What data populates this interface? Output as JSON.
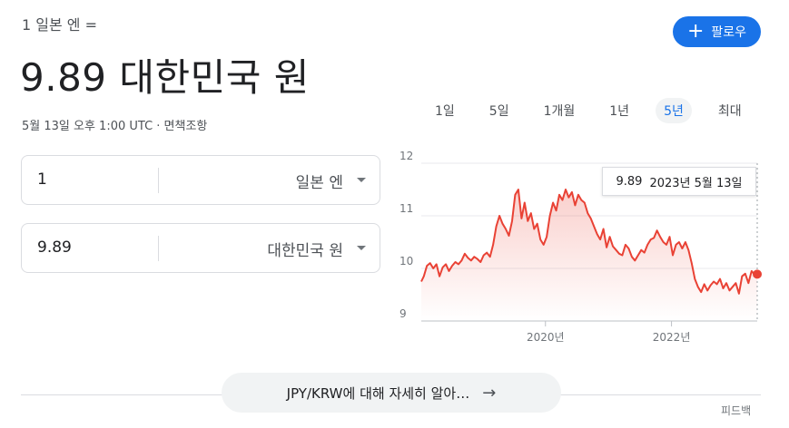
{
  "header": {
    "from_line": "1 일본 엔 =",
    "value_line": "9.89 대한민국 원",
    "timestamp": "5월 13일 오후 1:00 UTC · 면책조항"
  },
  "follow": {
    "label": "팔로우",
    "icon": "plus-icon",
    "color": "#1a73e8"
  },
  "range_tabs": [
    {
      "label": "1일",
      "active": false
    },
    {
      "label": "5일",
      "active": false
    },
    {
      "label": "1개월",
      "active": false
    },
    {
      "label": "1년",
      "active": false
    },
    {
      "label": "5년",
      "active": true
    },
    {
      "label": "최대",
      "active": false
    }
  ],
  "converter": {
    "from": {
      "amount": "1",
      "currency": "일본 엔"
    },
    "to": {
      "amount": "9.89",
      "currency": "대한민국 원"
    }
  },
  "tooltip": {
    "value": "9.89",
    "date": "2023년 5월 13일"
  },
  "chart_data": {
    "type": "area",
    "line_color": "#e94235",
    "ylim": [
      9,
      12
    ],
    "yticks": [
      "12",
      "11",
      "10",
      "9"
    ],
    "xticks": [
      {
        "label": "2020년",
        "x": 2020.0
      },
      {
        "label": "2022년",
        "x": 2022.0
      }
    ],
    "xlim": [
      2018.03,
      2023.36
    ],
    "series": [
      {
        "x": [
          2018.03,
          2018.07,
          2018.12,
          2018.17,
          2018.22,
          2018.27,
          2018.32,
          2018.37,
          2018.42,
          2018.47,
          2018.52,
          2018.57,
          2018.62,
          2018.67,
          2018.72,
          2018.77,
          2018.82,
          2018.87,
          2018.92,
          2018.97,
          2019.02,
          2019.07,
          2019.12,
          2019.17,
          2019.22,
          2019.27,
          2019.32,
          2019.37,
          2019.42,
          2019.47,
          2019.52,
          2019.57,
          2019.62,
          2019.67,
          2019.72,
          2019.77,
          2019.82,
          2019.87,
          2019.92,
          2019.97,
          2020.02,
          2020.07,
          2020.12,
          2020.17,
          2020.22,
          2020.27,
          2020.32,
          2020.37,
          2020.42,
          2020.47,
          2020.52,
          2020.57,
          2020.62,
          2020.67,
          2020.72,
          2020.77,
          2020.82,
          2020.87,
          2020.92,
          2020.97,
          2021.02,
          2021.07,
          2021.12,
          2021.17,
          2021.22,
          2021.27,
          2021.32,
          2021.37,
          2021.42,
          2021.47,
          2021.52,
          2021.57,
          2021.62,
          2021.67,
          2021.72,
          2021.77,
          2021.82,
          2021.87,
          2021.92,
          2021.97,
          2022.02,
          2022.07,
          2022.12,
          2022.17,
          2022.22,
          2022.27,
          2022.32,
          2022.37,
          2022.42,
          2022.47,
          2022.52,
          2022.57,
          2022.62,
          2022.67,
          2022.72,
          2022.77,
          2022.82,
          2022.87,
          2022.92,
          2022.97,
          2023.02,
          2023.07,
          2023.12,
          2023.17,
          2023.22,
          2023.27,
          2023.32,
          2023.36
        ],
        "values": [
          9.75,
          9.85,
          10.05,
          10.1,
          10.0,
          10.08,
          9.85,
          10.02,
          10.08,
          9.95,
          10.05,
          10.12,
          10.08,
          10.15,
          10.28,
          10.2,
          10.15,
          10.22,
          10.18,
          10.12,
          10.25,
          10.3,
          10.22,
          10.45,
          10.8,
          11.0,
          10.85,
          10.75,
          10.62,
          10.9,
          11.4,
          11.5,
          10.95,
          11.25,
          10.9,
          11.05,
          10.75,
          10.85,
          10.55,
          10.45,
          10.6,
          11.0,
          11.25,
          11.1,
          11.4,
          11.3,
          11.5,
          11.35,
          11.45,
          11.2,
          11.4,
          11.3,
          11.25,
          11.05,
          10.95,
          10.8,
          10.65,
          10.55,
          10.75,
          10.4,
          10.6,
          10.42,
          10.35,
          10.28,
          10.25,
          10.45,
          10.38,
          10.22,
          10.15,
          10.25,
          10.35,
          10.3,
          10.45,
          10.55,
          10.58,
          10.72,
          10.6,
          10.5,
          10.45,
          10.6,
          10.25,
          10.45,
          10.5,
          10.38,
          10.5,
          10.35,
          10.1,
          9.8,
          9.65,
          9.55,
          9.7,
          9.58,
          9.68,
          9.75,
          9.7,
          9.8,
          9.62,
          9.72,
          9.58,
          9.65,
          9.72,
          9.52,
          9.85,
          9.9,
          9.72,
          9.95,
          9.88,
          9.89
        ]
      }
    ]
  },
  "learn_more": {
    "label": "JPY/KRW에 대해 자세히 알아…",
    "icon": "arrow-right-icon"
  },
  "feedback": {
    "label": "피드백"
  }
}
